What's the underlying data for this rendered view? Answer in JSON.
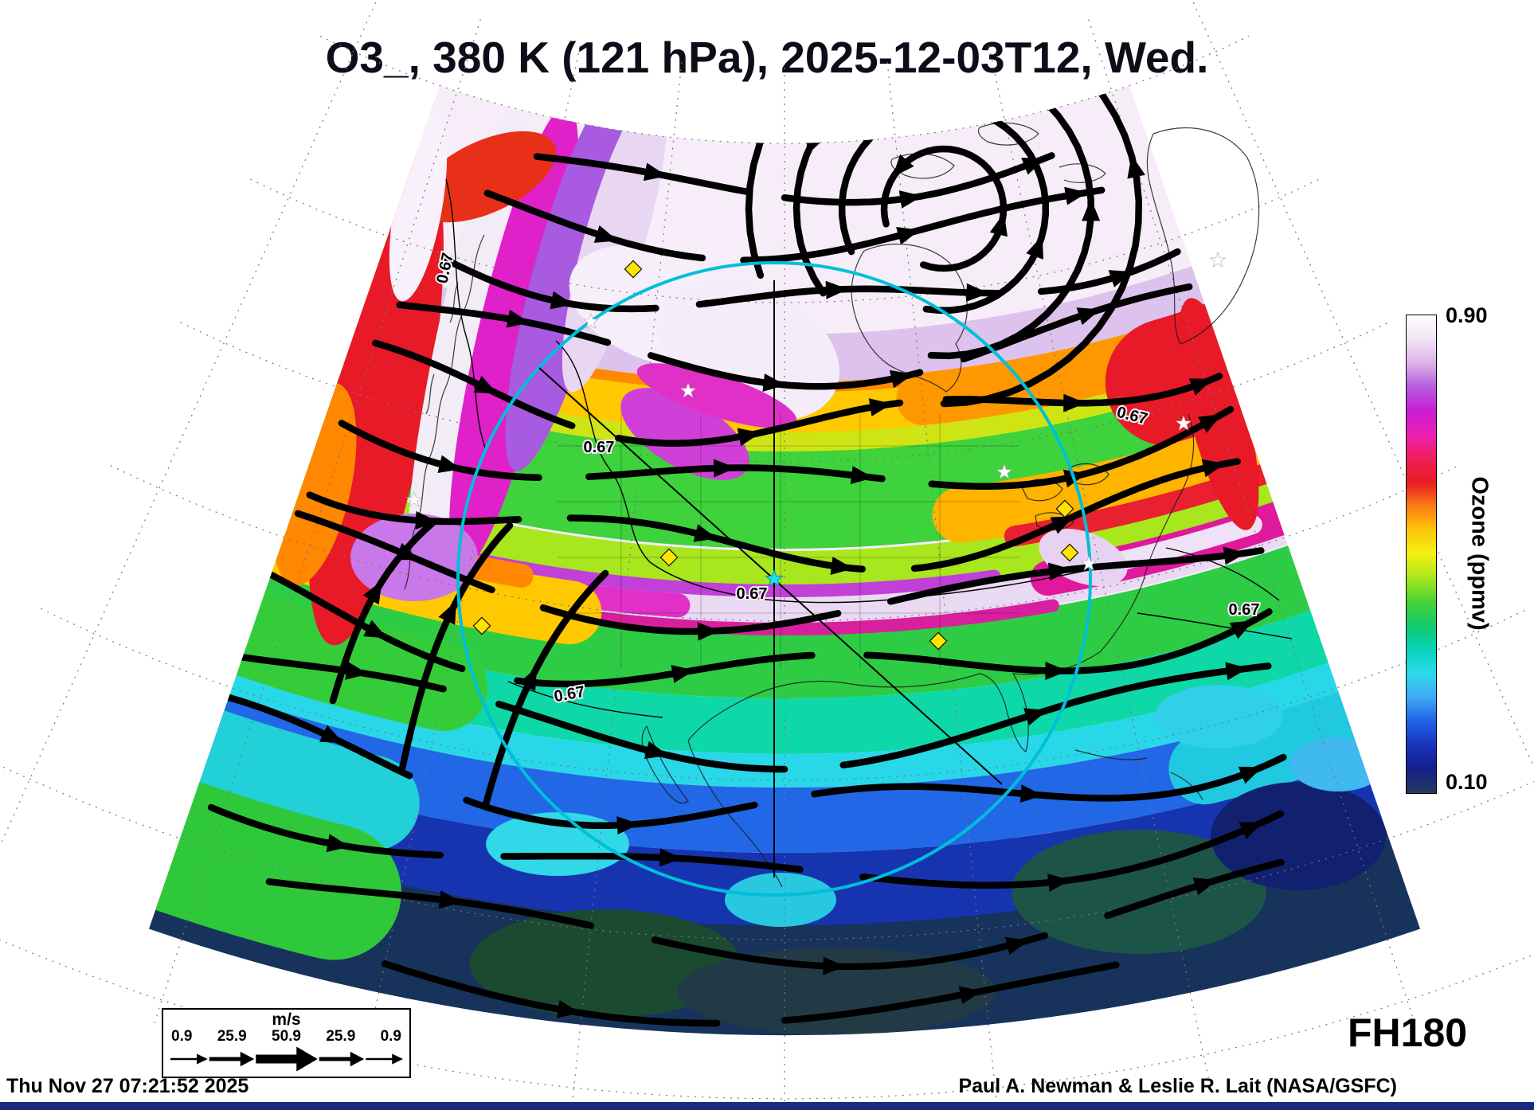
{
  "header": {
    "title": "O3_, 380 K (121 hPa), 2025-12-03T12, Wed."
  },
  "colorbar": {
    "top_label": "0.90",
    "bottom_label": "0.10",
    "axis_label": "Ozone (ppmv)"
  },
  "wind_legend": {
    "unit_label": "m/s",
    "speed_labels": [
      "0.9",
      "25.9",
      "50.9",
      "25.9",
      "0.9"
    ]
  },
  "annotations": {
    "forecast_hour_label": "FH180",
    "contour_label": "0.67"
  },
  "footer": {
    "generated_timestamp": "Thu Nov 27 07:21:52 2025",
    "credit": "Paul A. Newman & Leslie R. Lait (NASA/GSFC)"
  },
  "chart_data": {
    "type": "heatmap",
    "title": "O3_, 380 K (121 hPa), 2025-12-03T12, Wed.",
    "variable": "O3_",
    "level": "380 K (121 hPa)",
    "valid_time": "2025-12-03T12",
    "valid_day": "Wed.",
    "forecast_hour_label": "FH180",
    "units": "ppmv",
    "colorbar": {
      "label": "Ozone (ppmv)",
      "min": 0.1,
      "max": 0.9
    },
    "contour_level": 0.67,
    "wind_reference_speeds_ms": [
      0.9,
      25.9,
      50.9,
      25.9,
      0.9
    ],
    "projection": "polar azimuthal sector over North America",
    "overlays": [
      "black wind streamlines with arrowheads",
      "0.67 ppmv ozone contour lines",
      "cyan range circle with crosshair and center star",
      "yellow diamond markers",
      "white star markers"
    ],
    "colormap_stops": [
      {
        "value": 0.9,
        "color": "#ffffff"
      },
      {
        "value": 0.86,
        "color": "#f3e4f5"
      },
      {
        "value": 0.82,
        "color": "#dcb2e8"
      },
      {
        "value": 0.78,
        "color": "#b75ce0"
      },
      {
        "value": 0.74,
        "color": "#c81ed4"
      },
      {
        "value": 0.7,
        "color": "#ed1fb6"
      },
      {
        "value": 0.66,
        "color": "#f01f56"
      },
      {
        "value": 0.62,
        "color": "#e81c24"
      },
      {
        "value": 0.58,
        "color": "#fb7d14"
      },
      {
        "value": 0.54,
        "color": "#fdc708"
      },
      {
        "value": 0.5,
        "color": "#f3f112"
      },
      {
        "value": 0.46,
        "color": "#a8e61e"
      },
      {
        "value": 0.42,
        "color": "#46d235"
      },
      {
        "value": 0.38,
        "color": "#12c96d"
      },
      {
        "value": 0.34,
        "color": "#06d3b9"
      },
      {
        "value": 0.3,
        "color": "#2cd9ea"
      },
      {
        "value": 0.26,
        "color": "#3fa9f4"
      },
      {
        "value": 0.22,
        "color": "#1f62e6"
      },
      {
        "value": 0.18,
        "color": "#1b34bc"
      },
      {
        "value": 0.14,
        "color": "#131f8a"
      },
      {
        "value": 0.1,
        "color": "#27395c"
      }
    ]
  }
}
